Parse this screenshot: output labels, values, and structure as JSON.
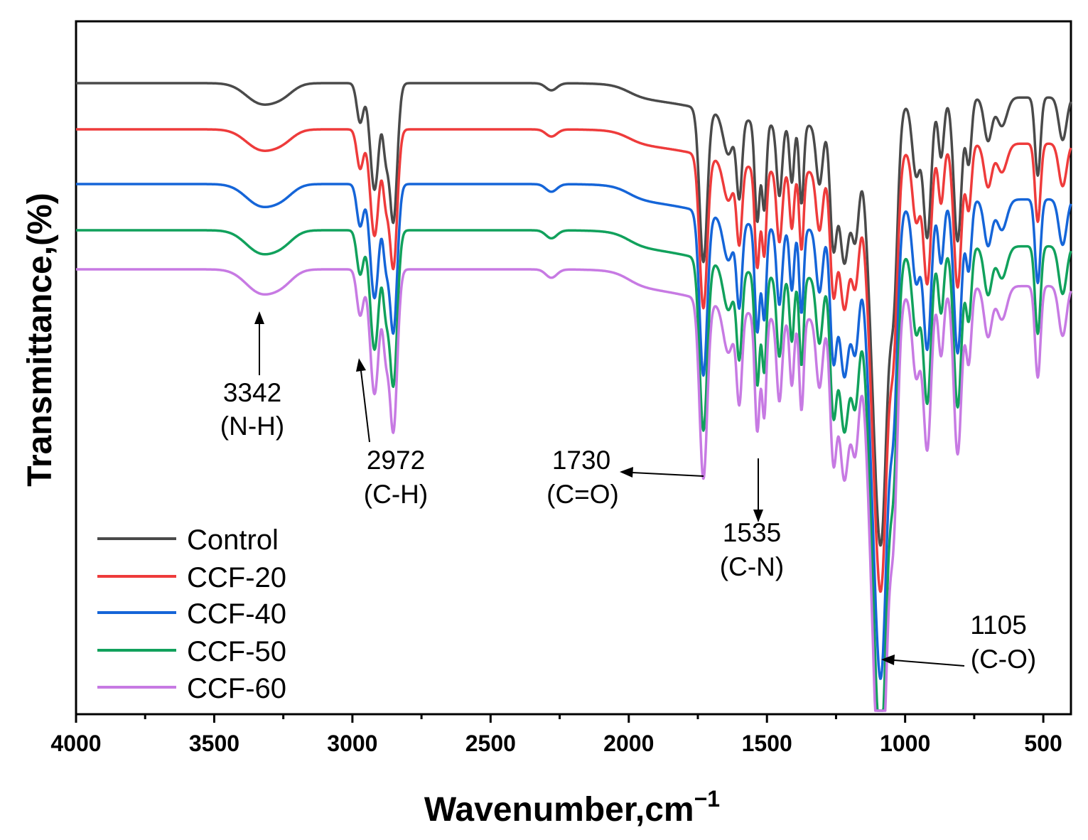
{
  "chart_data": {
    "type": "line",
    "title": "",
    "xlabel": "Wavenumber,cm",
    "xlabel_superscript": "−1",
    "ylabel": "Transmittance,(%)",
    "xlim": [
      4000,
      400
    ],
    "x_reversed": true,
    "xticks": [
      4000,
      3500,
      3000,
      2500,
      2000,
      1500,
      1000,
      500
    ],
    "xtick_labels": [
      "4000",
      "3500",
      "3000",
      "2500",
      "2000",
      "1500",
      "1000",
      "500"
    ],
    "yticks_shown": false,
    "series": [
      {
        "name": "Control",
        "color": "#4a4a4a",
        "offset": 0,
        "depth": 1.0
      },
      {
        "name": "CCF-20",
        "color": "#ee3b3b",
        "offset": 65,
        "depth": 1.0
      },
      {
        "name": "CCF-40",
        "color": "#1565d8",
        "offset": 142,
        "depth": 1.07
      },
      {
        "name": "CCF-50",
        "color": "#11a15c",
        "offset": 207,
        "depth": 1.12
      },
      {
        "name": "CCF-60",
        "color": "#c77ae3",
        "offset": 262,
        "depth": 1.17
      }
    ],
    "annotations": [
      {
        "value": "3342",
        "label": "(N-H)"
      },
      {
        "value": "2972",
        "label": "(C-H)"
      },
      {
        "value": "1730",
        "label": "(C=O)"
      },
      {
        "value": "1535",
        "label": "(C-N)"
      },
      {
        "value": "1105",
        "label": "(C-O)"
      }
    ],
    "legend": {
      "placement": "bottom-left",
      "entries": [
        "Control",
        "CCF-20",
        "CCF-40",
        "CCF-50",
        "CCF-60"
      ]
    }
  }
}
